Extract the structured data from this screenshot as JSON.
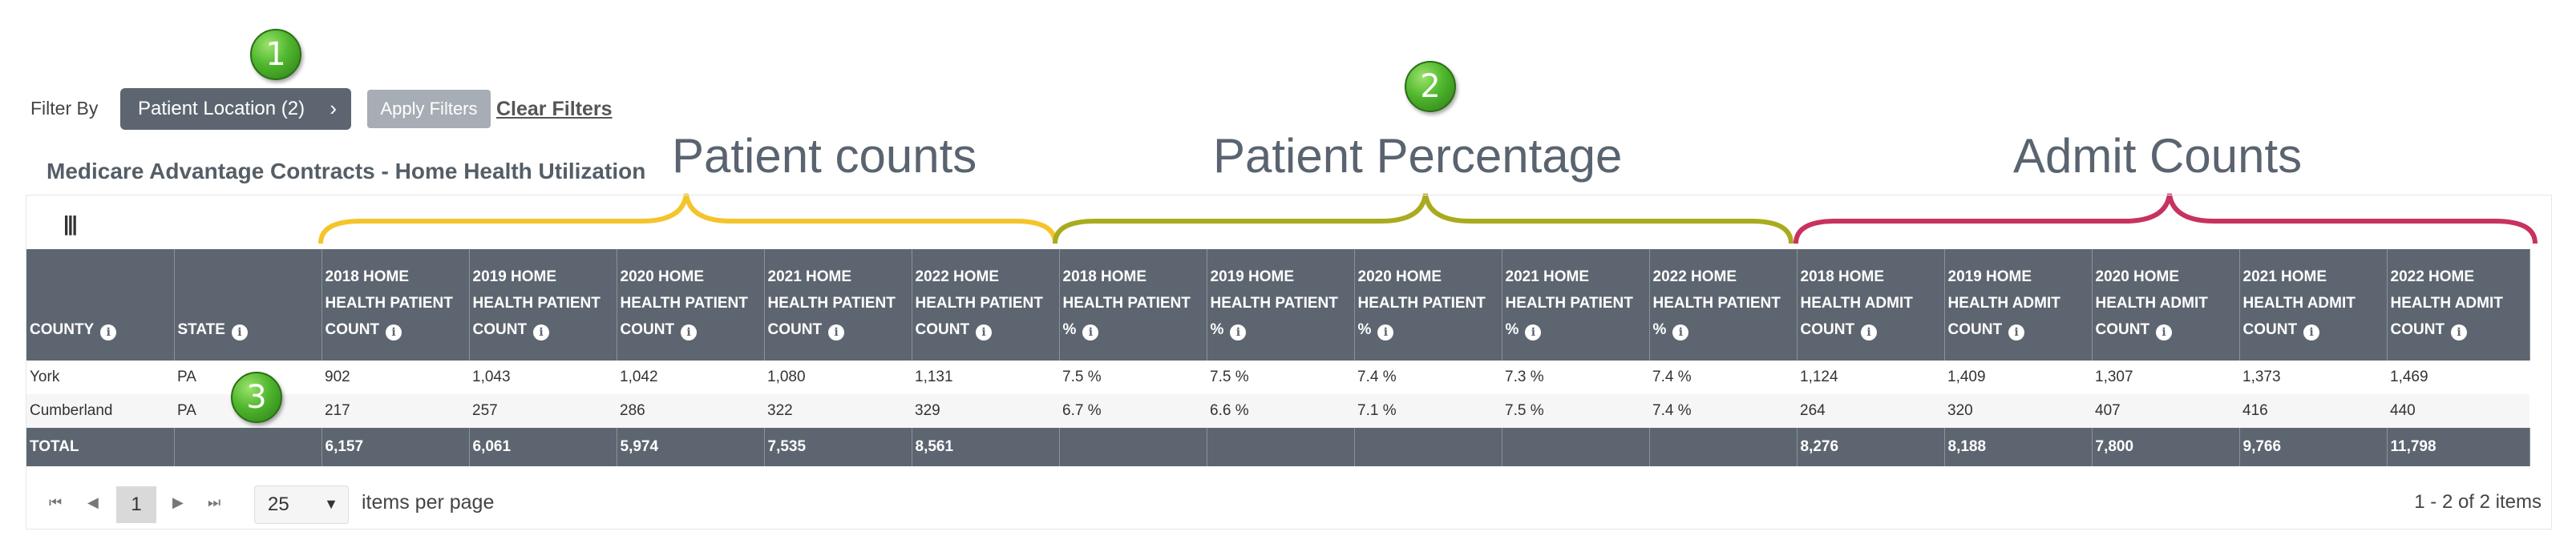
{
  "filter": {
    "label": "Filter By",
    "location_button": "Patient Location (2)",
    "apply_button": "Apply Filters",
    "clear_link": "Clear Filters"
  },
  "markers": [
    "1",
    "2",
    "3"
  ],
  "report_title": "Medicare Advantage Contracts - Home Health Utilization",
  "sections": {
    "counts": "Patient counts",
    "percentage": "Patient Percentage",
    "admits": "Admit Counts"
  },
  "colors": {
    "header": "#5d6670",
    "counts_brace": "#f4c42a",
    "percentage_brace": "#a9ab1f",
    "admits_brace": "#c8325e"
  },
  "table": {
    "columns": [
      {
        "label": "COUNTY",
        "info": true
      },
      {
        "label": "STATE",
        "info": true
      },
      {
        "label": "2018 HOME HEALTH PATIENT COUNT",
        "info": true
      },
      {
        "label": "2019 HOME HEALTH PATIENT COUNT",
        "info": true
      },
      {
        "label": "2020 HOME HEALTH PATIENT COUNT",
        "info": true
      },
      {
        "label": "2021 HOME HEALTH PATIENT COUNT",
        "info": true
      },
      {
        "label": "2022 HOME HEALTH PATIENT COUNT",
        "info": true
      },
      {
        "label": "2018 HOME HEALTH PATIENT %",
        "info": true
      },
      {
        "label": "2019 HOME HEALTH PATIENT %",
        "info": true
      },
      {
        "label": "2020 HOME HEALTH PATIENT %",
        "info": true
      },
      {
        "label": "2021 HOME HEALTH PATIENT %",
        "info": true
      },
      {
        "label": "2022 HOME HEALTH PATIENT %",
        "info": true
      },
      {
        "label": "2018 HOME HEALTH ADMIT COUNT",
        "info": true
      },
      {
        "label": "2019 HOME HEALTH ADMIT COUNT",
        "info": true
      },
      {
        "label": "2020 HOME HEALTH ADMIT COUNT",
        "info": true
      },
      {
        "label": "2021 HOME HEALTH ADMIT COUNT",
        "info": true
      },
      {
        "label": "2022 HOME HEALTH ADMIT COUNT",
        "info": true
      }
    ],
    "rows": [
      [
        "York",
        "PA",
        "902",
        "1,043",
        "1,042",
        "1,080",
        "1,131",
        "7.5 %",
        "7.5 %",
        "7.4 %",
        "7.3 %",
        "7.4 %",
        "1,124",
        "1,409",
        "1,307",
        "1,373",
        "1,469"
      ],
      [
        "Cumberland",
        "PA",
        "217",
        "257",
        "286",
        "322",
        "329",
        "6.7 %",
        "6.6 %",
        "7.1 %",
        "7.5 %",
        "7.4 %",
        "264",
        "320",
        "407",
        "416",
        "440"
      ]
    ],
    "total": [
      "TOTAL",
      "",
      "6,157",
      "6,061",
      "5,974",
      "7,535",
      "8,561",
      "",
      "",
      "",
      "",
      "",
      "8,276",
      "8,188",
      "7,800",
      "9,766",
      "11,798"
    ]
  },
  "pager": {
    "current_page": "1",
    "page_size": "25",
    "items_per_page_label": "items per page",
    "info": "1 - 2 of 2 items"
  }
}
